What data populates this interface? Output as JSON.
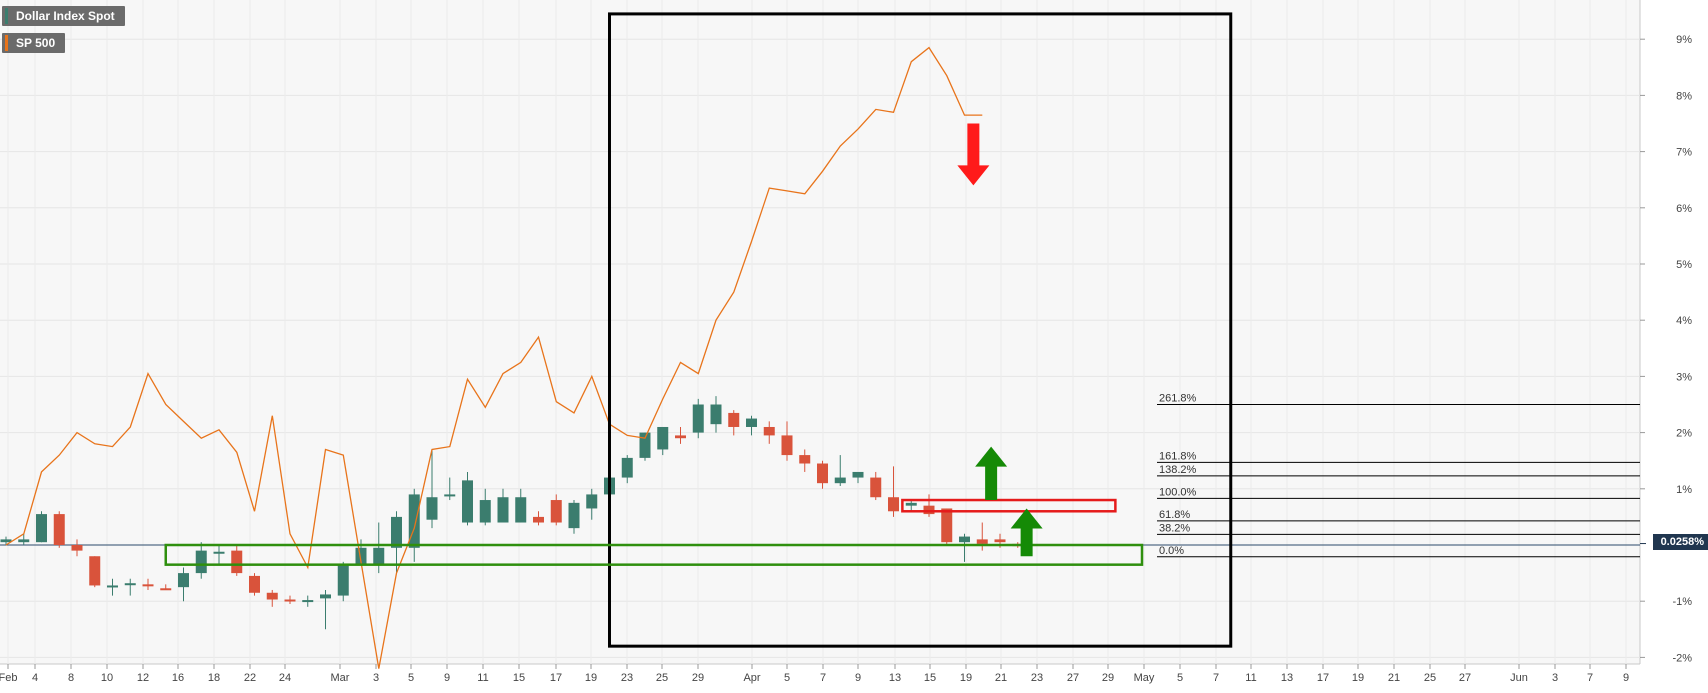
{
  "chart_data": {
    "type": "line",
    "legend": [
      {
        "name": "Dollar Index Spot",
        "color": "#3b7d6e"
      },
      {
        "name": "SP 500",
        "color": "#e8741b"
      }
    ],
    "y_ticks": [
      "9%",
      "8%",
      "7%",
      "6%",
      "5%",
      "4%",
      "3%",
      "2%",
      "1%",
      "-1%",
      "-2%"
    ],
    "ylim": [
      -2.15,
      9.7
    ],
    "x_ticks": [
      "Feb",
      "4",
      "8",
      "10",
      "12",
      "16",
      "18",
      "22",
      "24",
      "Mar",
      "3",
      "5",
      "9",
      "11",
      "15",
      "17",
      "19",
      "23",
      "25",
      "29",
      "Apr",
      "5",
      "7",
      "9",
      "13",
      "15",
      "19",
      "21",
      "23",
      "27",
      "29",
      "May",
      "5",
      "7",
      "11",
      "13",
      "17",
      "19",
      "21",
      "25",
      "27",
      "Jun",
      "3",
      "7",
      "9"
    ],
    "last_value_label": "0.0258%",
    "grid": true,
    "series": [
      {
        "name": "SP 500",
        "kind": "line",
        "color": "#e8741b",
        "x": [
          0,
          1,
          2,
          3,
          4,
          5,
          6,
          7,
          8,
          9,
          10,
          11,
          12,
          13,
          14,
          15,
          16,
          17,
          18,
          19,
          20,
          21,
          22,
          23,
          24,
          25,
          26,
          27,
          28,
          29,
          30,
          31,
          32,
          33,
          34,
          35,
          36,
          37,
          38,
          39,
          40,
          41,
          42,
          43,
          44,
          45,
          46,
          47,
          48,
          49,
          50,
          51,
          52,
          53,
          54,
          55
        ],
        "y": [
          0.0,
          0.2,
          1.3,
          1.6,
          2.0,
          1.8,
          1.75,
          2.1,
          3.05,
          2.5,
          2.2,
          1.9,
          2.05,
          1.65,
          0.6,
          2.3,
          0.2,
          -0.4,
          1.7,
          1.6,
          -0.3,
          -2.2,
          -0.5,
          0.3,
          1.7,
          1.75,
          2.95,
          2.45,
          3.05,
          3.25,
          3.7,
          2.55,
          2.35,
          3.0,
          2.15,
          1.95,
          1.9,
          2.6,
          3.25,
          3.05,
          4.0,
          4.5,
          5.4,
          6.35,
          6.3,
          6.25,
          6.65,
          7.1,
          7.4,
          7.75,
          7.7,
          8.6,
          8.85,
          8.35,
          7.65,
          7.65
        ]
      },
      {
        "name": "Dollar Index Spot",
        "kind": "candlestick",
        "up_color": "#3b7d6e",
        "down_color": "#d9533b",
        "x": [
          0,
          1,
          2,
          3,
          4,
          5,
          6,
          7,
          8,
          9,
          10,
          11,
          12,
          13,
          14,
          15,
          16,
          17,
          18,
          19,
          20,
          21,
          22,
          23,
          24,
          25,
          26,
          27,
          28,
          29,
          30,
          31,
          32,
          33,
          34,
          35,
          36,
          37,
          38,
          39,
          40,
          41,
          42,
          43,
          44,
          45,
          46,
          47,
          48,
          49,
          50,
          51,
          52,
          53,
          54,
          55,
          56,
          57
        ],
        "open": [
          0.05,
          0.05,
          0.05,
          0.55,
          0.0,
          -0.2,
          -0.72,
          -0.7,
          -0.7,
          -0.77,
          -0.75,
          -0.5,
          -0.12,
          -0.1,
          -0.55,
          -0.85,
          -0.97,
          -1.0,
          -0.95,
          -0.9,
          -0.35,
          -0.35,
          -0.05,
          -0.05,
          0.45,
          0.9,
          0.4,
          0.4,
          0.4,
          0.4,
          0.5,
          0.8,
          0.3,
          0.65,
          0.9,
          1.2,
          1.55,
          1.7,
          1.95,
          2.0,
          2.15,
          2.35,
          2.1,
          2.1,
          1.95,
          1.6,
          1.45,
          1.1,
          1.2,
          1.2,
          0.85,
          0.7,
          0.7,
          0.65,
          0.05,
          0.1,
          0.1,
          0.02
        ],
        "close": [
          0.1,
          0.1,
          0.55,
          0.0,
          -0.1,
          -0.72,
          -0.72,
          -0.68,
          -0.72,
          -0.78,
          -0.5,
          -0.1,
          -0.12,
          -0.5,
          -0.85,
          -0.97,
          -1.0,
          -0.98,
          -0.88,
          -0.35,
          -0.05,
          -0.05,
          0.5,
          0.9,
          0.85,
          0.9,
          1.15,
          0.8,
          0.85,
          0.85,
          0.4,
          0.4,
          0.75,
          0.9,
          1.2,
          1.55,
          2.0,
          2.1,
          1.9,
          2.5,
          2.5,
          2.1,
          2.25,
          1.95,
          1.6,
          1.45,
          1.1,
          1.2,
          1.3,
          0.85,
          0.6,
          0.75,
          0.55,
          0.05,
          0.15,
          0.02,
          0.05,
          -0.02
        ],
        "high": [
          0.15,
          0.2,
          0.6,
          0.6,
          0.1,
          -0.2,
          -0.6,
          -0.6,
          -0.6,
          -0.7,
          -0.4,
          0.05,
          0.0,
          0.0,
          -0.5,
          -0.8,
          -0.9,
          -0.9,
          -0.8,
          -0.3,
          0.1,
          0.4,
          0.6,
          1.0,
          1.7,
          1.2,
          1.3,
          1.0,
          1.0,
          1.0,
          0.6,
          0.9,
          0.8,
          1.0,
          1.3,
          1.6,
          2.0,
          2.1,
          2.1,
          2.6,
          2.65,
          2.4,
          2.3,
          2.2,
          2.2,
          1.7,
          1.5,
          1.6,
          1.3,
          1.3,
          1.4,
          0.8,
          0.9,
          0.65,
          0.2,
          0.4,
          0.2,
          0.05
        ],
        "low": [
          0.0,
          0.0,
          0.05,
          -0.05,
          -0.2,
          -0.75,
          -0.9,
          -0.9,
          -0.8,
          -0.8,
          -1.0,
          -0.6,
          -0.35,
          -0.55,
          -0.9,
          -1.1,
          -1.05,
          -1.1,
          -1.5,
          -1.0,
          -0.35,
          -0.5,
          -0.5,
          -0.3,
          0.3,
          0.8,
          0.35,
          0.35,
          0.5,
          0.4,
          0.35,
          0.35,
          0.2,
          0.45,
          0.8,
          1.1,
          1.5,
          1.6,
          1.8,
          1.9,
          2.0,
          1.95,
          1.95,
          1.8,
          1.5,
          1.3,
          1.0,
          1.05,
          1.1,
          0.8,
          0.5,
          0.6,
          0.5,
          0.0,
          -0.3,
          -0.1,
          -0.05,
          -0.05
        ]
      }
    ],
    "fibonacci_levels": [
      {
        "label": "261.8%",
        "value": 2.5
      },
      {
        "label": "161.8%",
        "value": 1.47
      },
      {
        "label": "138.2%",
        "value": 1.23
      },
      {
        "label": "100.0%",
        "value": 0.83
      },
      {
        "label": "61.8%",
        "value": 0.43
      },
      {
        "label": "38.2%",
        "value": 0.19
      },
      {
        "label": "0.0%",
        "value": -0.21
      }
    ],
    "current_level": 0.0258,
    "annotations": [
      {
        "shape": "box",
        "color": "#000000",
        "x_from": 34,
        "x_to": 69,
        "y_from": -1.8,
        "y_to": 9.45
      },
      {
        "shape": "box",
        "color": "#2f8f0e",
        "x_from": 9,
        "x_to": 64,
        "y_from": -0.35,
        "y_to": 0.0
      },
      {
        "shape": "box",
        "color": "#e51b1b",
        "x_from": 50.5,
        "x_to": 62.5,
        "y_from": 0.6,
        "y_to": 0.8
      },
      {
        "shape": "arrow-down",
        "color": "#ff1a1a",
        "x": 54.5,
        "y_from": 7.5,
        "y_to": 6.4
      },
      {
        "shape": "arrow-up",
        "color": "#158a06",
        "x": 55.5,
        "y_from": 0.8,
        "y_to": 1.75
      },
      {
        "shape": "arrow-up",
        "color": "#158a06",
        "x": 57.5,
        "y_from": -0.2,
        "y_to": 0.65
      }
    ]
  }
}
